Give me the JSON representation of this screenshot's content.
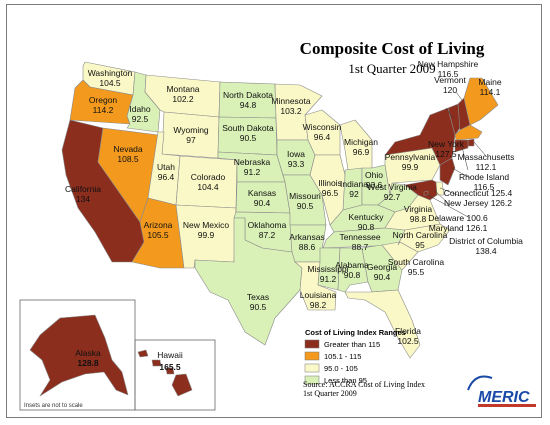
{
  "title": "Composite Cost of Living",
  "subtitle": "1st Quarter 2009",
  "colors": {
    "high": "#8B2E1E",
    "mid_high": "#F39A1E",
    "mid_low": "#FAF8C6",
    "low": "#D9F0B7",
    "border": "#8a8a8a"
  },
  "legend": {
    "title": "Cost of Living Index Ranges",
    "items": [
      {
        "label": "Greater than 115",
        "color": "#8B2E1E"
      },
      {
        "label": "105.1 - 115",
        "color": "#F39A1E"
      },
      {
        "label": "95.0 - 105",
        "color": "#FAF8C6"
      },
      {
        "label": "Less than 95",
        "color": "#D9F0B7"
      }
    ]
  },
  "source": {
    "line1": "Source: ACCRA Cost of Living Index",
    "line2": "1st Quarter 2009"
  },
  "inset_note": "Insets are not to scale",
  "logo": "MERIC",
  "states": [
    {
      "name": "Washington",
      "value": "104.5",
      "tier": "mid_low"
    },
    {
      "name": "Oregon",
      "value": "114.2",
      "tier": "mid_high"
    },
    {
      "name": "California",
      "value": "134",
      "tier": "high"
    },
    {
      "name": "Idaho",
      "value": "92.5",
      "tier": "low"
    },
    {
      "name": "Nevada",
      "value": "108.5",
      "tier": "mid_high"
    },
    {
      "name": "Montana",
      "value": "102.2",
      "tier": "mid_low"
    },
    {
      "name": "Wyoming",
      "value": "97",
      "tier": "mid_low"
    },
    {
      "name": "Utah",
      "value": "96.4",
      "tier": "mid_low"
    },
    {
      "name": "Arizona",
      "value": "105.5",
      "tier": "mid_high"
    },
    {
      "name": "Colorado",
      "value": "104.4",
      "tier": "mid_low"
    },
    {
      "name": "New Mexico",
      "value": "99.9",
      "tier": "mid_low"
    },
    {
      "name": "North Dakota",
      "value": "94.8",
      "tier": "low"
    },
    {
      "name": "South Dakota",
      "value": "90.5",
      "tier": "low"
    },
    {
      "name": "Nebraska",
      "value": "91.2",
      "tier": "low"
    },
    {
      "name": "Kansas",
      "value": "90.4",
      "tier": "low"
    },
    {
      "name": "Oklahoma",
      "value": "87.2",
      "tier": "low"
    },
    {
      "name": "Texas",
      "value": "90.5",
      "tier": "low"
    },
    {
      "name": "Minnesota",
      "value": "103.2",
      "tier": "mid_low"
    },
    {
      "name": "Iowa",
      "value": "93.3",
      "tier": "low"
    },
    {
      "name": "Missouri",
      "value": "90.5",
      "tier": "low"
    },
    {
      "name": "Arkansas",
      "value": "88.6",
      "tier": "low"
    },
    {
      "name": "Louisiana",
      "value": "98.2",
      "tier": "mid_low"
    },
    {
      "name": "Wisconsin",
      "value": "96.4",
      "tier": "mid_low"
    },
    {
      "name": "Illinois",
      "value": "96.5",
      "tier": "mid_low"
    },
    {
      "name": "Michigan",
      "value": "96.9",
      "tier": "mid_low"
    },
    {
      "name": "Indiana",
      "value": "92",
      "tier": "low"
    },
    {
      "name": "Ohio",
      "value": "93.6",
      "tier": "low"
    },
    {
      "name": "Kentucky",
      "value": "90.8",
      "tier": "low"
    },
    {
      "name": "Tennessee",
      "value": "88.7",
      "tier": "low"
    },
    {
      "name": "Mississippi",
      "value": "91.2",
      "tier": "low"
    },
    {
      "name": "Alabama",
      "value": "90.8",
      "tier": "low"
    },
    {
      "name": "Georgia",
      "value": "90.4",
      "tier": "low"
    },
    {
      "name": "Florida",
      "value": "102.5",
      "tier": "mid_low"
    },
    {
      "name": "South Carolina",
      "value": "95.5",
      "tier": "mid_low"
    },
    {
      "name": "North Carolina",
      "value": "95",
      "tier": "mid_low"
    },
    {
      "name": "Virginia",
      "value": "98.8",
      "tier": "mid_low"
    },
    {
      "name": "West Virginia",
      "value": "92.7",
      "tier": "low"
    },
    {
      "name": "Pennsylvania",
      "value": "99.9",
      "tier": "mid_low"
    },
    {
      "name": "New York",
      "value": "127.5",
      "tier": "high"
    },
    {
      "name": "Vermont",
      "value": "120",
      "tier": "high"
    },
    {
      "name": "New Hampshire",
      "value": "116.5",
      "tier": "high"
    },
    {
      "name": "Maine",
      "value": "114.1",
      "tier": "mid_high"
    },
    {
      "name": "Massachusetts",
      "value": "112.1",
      "tier": "mid_high"
    },
    {
      "name": "Rhode Island",
      "value": "116.5",
      "tier": "high"
    },
    {
      "name": "Connecticut",
      "value": "125.4",
      "tier": "high"
    },
    {
      "name": "New Jersey",
      "value": "126.2",
      "tier": "high"
    },
    {
      "name": "Delaware",
      "value": "100.6",
      "tier": "mid_low"
    },
    {
      "name": "Maryland",
      "value": "126.1",
      "tier": "high"
    },
    {
      "name": "District of Columbia",
      "value": "138.4",
      "tier": "high"
    },
    {
      "name": "Alaska",
      "value": "128.8",
      "tier": "high"
    },
    {
      "name": "Hawaii",
      "value": "165.5",
      "tier": "high"
    }
  ]
}
